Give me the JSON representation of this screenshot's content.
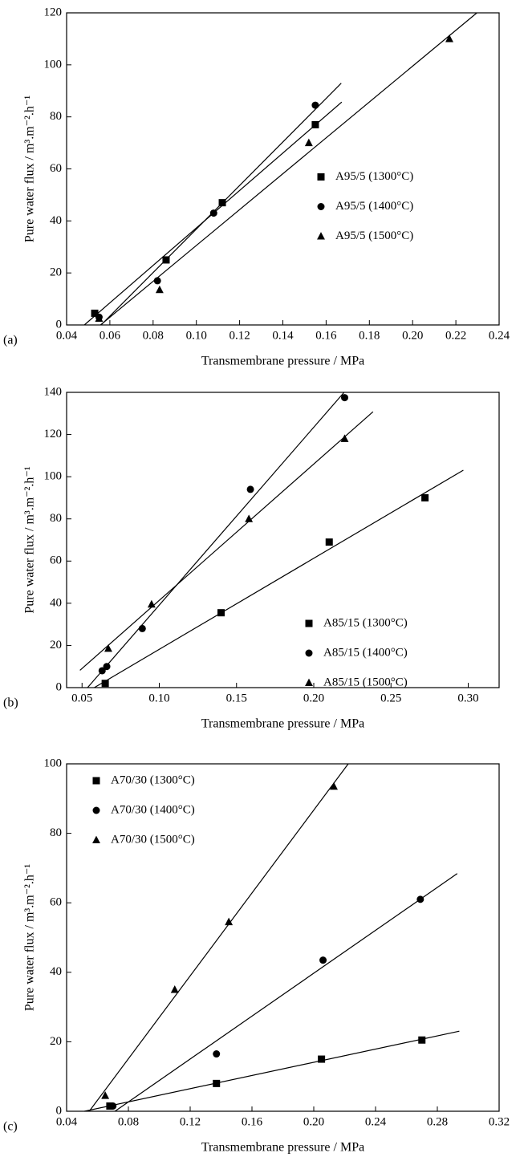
{
  "chart_data": [
    {
      "type": "scatter",
      "panel_label": "(a)",
      "x_label": "Transmembrane pressure / MPa",
      "y_label": "Pure water flux / m³.m⁻².h⁻¹",
      "xlim": [
        0.04,
        0.24
      ],
      "xticks": [
        0.04,
        0.06,
        0.08,
        {
          "value": 0.1,
          "label": "0.10"
        },
        0.12,
        0.14,
        0.16,
        0.18,
        {
          "value": 0.2,
          "label": "0.20"
        },
        0.22,
        0.24
      ],
      "ylim": [
        0,
        120
      ],
      "yticks": [
        0,
        20,
        40,
        60,
        80,
        100,
        120
      ],
      "trendline": "linear",
      "legend_position": "right",
      "series": [
        {
          "name": "A95/5 (1300°C)",
          "color": "#000000",
          "marker": "square",
          "x": [
            0.053,
            0.086,
            0.112,
            0.155
          ],
          "values": [
            4.5,
            25,
            47,
            77
          ]
        },
        {
          "name": "A95/5 (1400°C)",
          "color": "#000000",
          "marker": "circle",
          "x": [
            0.055,
            0.082,
            0.108,
            0.155
          ],
          "values": [
            3,
            17,
            43,
            84.5
          ]
        },
        {
          "name": "A95/5 (1500°C)",
          "color": "#000000",
          "marker": "triangle",
          "x": [
            0.055,
            0.083,
            0.152,
            0.217
          ],
          "values": [
            2.5,
            13.5,
            70,
            110
          ]
        }
      ]
    },
    {
      "type": "scatter",
      "panel_label": "(b)",
      "x_label": "Transmembrane pressure / MPa",
      "y_label": "Pure water flux / m³.m⁻².h⁻¹",
      "xlim": [
        0.04,
        0.32
      ],
      "xticks": [
        0.05,
        {
          "value": 0.1,
          "label": "0.10"
        },
        0.15,
        {
          "value": 0.2,
          "label": "0.20"
        },
        0.25,
        {
          "value": 0.3,
          "label": "0.30"
        }
      ],
      "ylim": [
        0,
        140
      ],
      "yticks": [
        0,
        20,
        40,
        60,
        80,
        100,
        120,
        140
      ],
      "trendline": "linear",
      "legend_position": "lower right",
      "series": [
        {
          "name": "A85/15 (1300°C)",
          "color": "#000000",
          "marker": "square",
          "x": [
            0.065,
            0.14,
            0.21,
            0.272
          ],
          "values": [
            2,
            35.5,
            69,
            90
          ]
        },
        {
          "name": "A85/15 (1400°C)",
          "color": "#000000",
          "marker": "circle",
          "x": [
            0.063,
            0.066,
            0.089,
            0.159,
            0.22
          ],
          "values": [
            8,
            10,
            28,
            94,
            137.5
          ]
        },
        {
          "name": "A85/15 (1500°C)",
          "color": "#000000",
          "marker": "triangle",
          "x": [
            0.067,
            0.095,
            0.158,
            0.22
          ],
          "values": [
            18.5,
            39.5,
            80,
            118
          ]
        }
      ]
    },
    {
      "type": "scatter",
      "panel_label": "(c)",
      "x_label": "Transmembrane pressure / MPa",
      "y_label": "Pure water flux / m³.m⁻².h⁻¹",
      "xlim": [
        0.04,
        0.32
      ],
      "xticks": [
        0.04,
        0.08,
        0.12,
        0.16,
        {
          "value": 0.2,
          "label": "0.20"
        },
        0.24,
        0.28,
        0.32
      ],
      "ylim": [
        0,
        100
      ],
      "yticks": [
        0,
        20,
        40,
        60,
        80,
        100
      ],
      "trendline": "linear",
      "legend_position": "upper left",
      "series": [
        {
          "name": "A70/30 (1300°C)",
          "color": "#000000",
          "marker": "square",
          "x": [
            0.068,
            0.137,
            0.205,
            0.27
          ],
          "values": [
            1.5,
            8,
            15,
            20.5
          ]
        },
        {
          "name": "A70/30 (1400°C)",
          "color": "#000000",
          "marker": "circle",
          "x": [
            0.07,
            0.137,
            0.206,
            0.269
          ],
          "values": [
            1.5,
            16.5,
            43.5,
            61
          ]
        },
        {
          "name": "A70/30 (1500°C)",
          "color": "#000000",
          "marker": "triangle",
          "x": [
            0.065,
            0.11,
            0.145,
            0.213
          ],
          "values": [
            4.5,
            35,
            54.5,
            93.5
          ]
        }
      ]
    }
  ]
}
